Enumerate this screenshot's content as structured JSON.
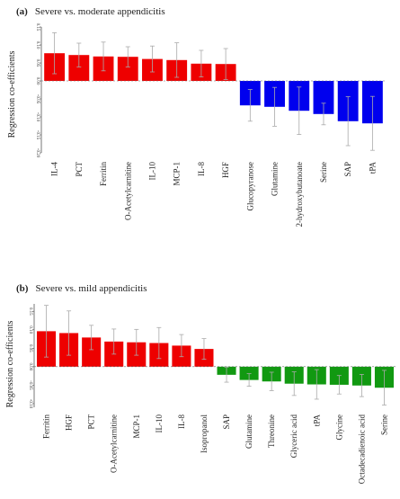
{
  "chart_data": [
    {
      "type": "bar",
      "title_letter": "(a)",
      "title": "Severe vs. moderate appendicitis",
      "ylabel": "Regression co-efficients",
      "xlabel": "",
      "ylim": [
        -0.2,
        0.15
      ],
      "yticks": [
        0.15,
        0.1,
        0.05,
        0.0,
        -0.05,
        -0.1,
        -0.15,
        -0.2
      ],
      "ytick_labels": [
        "0.15",
        "0.10",
        "0.05",
        "0.00",
        "-0.05",
        "-0.10",
        "-0.15",
        "-0.20"
      ],
      "grid": false,
      "categories": [
        "IL-4",
        "PCT",
        "Ferritin",
        "O-Acetylcarnitine",
        "IL-10",
        "MCP-1",
        "IL-8",
        "HGF",
        "Glucopyranose",
        "Glutamine",
        "2-hydroxybutanoate",
        "Serine",
        "SAP",
        "tPA"
      ],
      "values": [
        0.077,
        0.072,
        0.068,
        0.067,
        0.061,
        0.058,
        0.048,
        0.047,
        -0.068,
        -0.072,
        -0.083,
        -0.092,
        -0.112,
        -0.118
      ],
      "error": [
        0.057,
        0.033,
        0.04,
        0.028,
        0.036,
        0.048,
        0.037,
        0.043,
        0.044,
        0.054,
        0.066,
        0.03,
        0.068,
        0.075
      ],
      "colors": [
        "#ee0000",
        "#ee0000",
        "#ee0000",
        "#ee0000",
        "#ee0000",
        "#ee0000",
        "#ee0000",
        "#ee0000",
        "#0000ee",
        "#0000ee",
        "#0000ee",
        "#0000ee",
        "#0000ee",
        "#0000ee"
      ]
    },
    {
      "type": "bar",
      "title_letter": "(b)",
      "title": "Severe vs. mild appendicitis",
      "ylabel": "Regression co-efficients",
      "xlabel": "",
      "ylim": [
        -0.11,
        0.17
      ],
      "yticks": [
        0.15,
        0.1,
        0.05,
        0.0,
        -0.05,
        -0.1
      ],
      "ytick_labels": [
        "0.15",
        "0.10",
        "0.05",
        "0.00",
        "-0.05",
        "-0.10"
      ],
      "grid": false,
      "categories": [
        "Ferritin",
        "HGF",
        "PCT",
        "O-Acetylcarnitine",
        "MCP-1",
        "IL-10",
        "IL-8",
        "Isopropanol",
        "SAP",
        "Glutamine",
        "Threonine",
        "Glyceric acid",
        "tPA",
        "Glycine",
        "Octadecadienoic acid",
        "Serine"
      ],
      "values": [
        0.096,
        0.091,
        0.079,
        0.068,
        0.066,
        0.064,
        0.057,
        0.048,
        -0.022,
        -0.036,
        -0.04,
        -0.046,
        -0.048,
        -0.049,
        -0.051,
        -0.057
      ],
      "error": [
        0.07,
        0.06,
        0.033,
        0.034,
        0.035,
        0.042,
        0.03,
        0.028,
        0.02,
        0.017,
        0.025,
        0.032,
        0.04,
        0.025,
        0.03,
        0.047
      ],
      "colors": [
        "#ee0000",
        "#ee0000",
        "#ee0000",
        "#ee0000",
        "#ee0000",
        "#ee0000",
        "#ee0000",
        "#ee0000",
        "#119911",
        "#119911",
        "#119911",
        "#119911",
        "#119911",
        "#119911",
        "#119911",
        "#119911"
      ]
    }
  ]
}
